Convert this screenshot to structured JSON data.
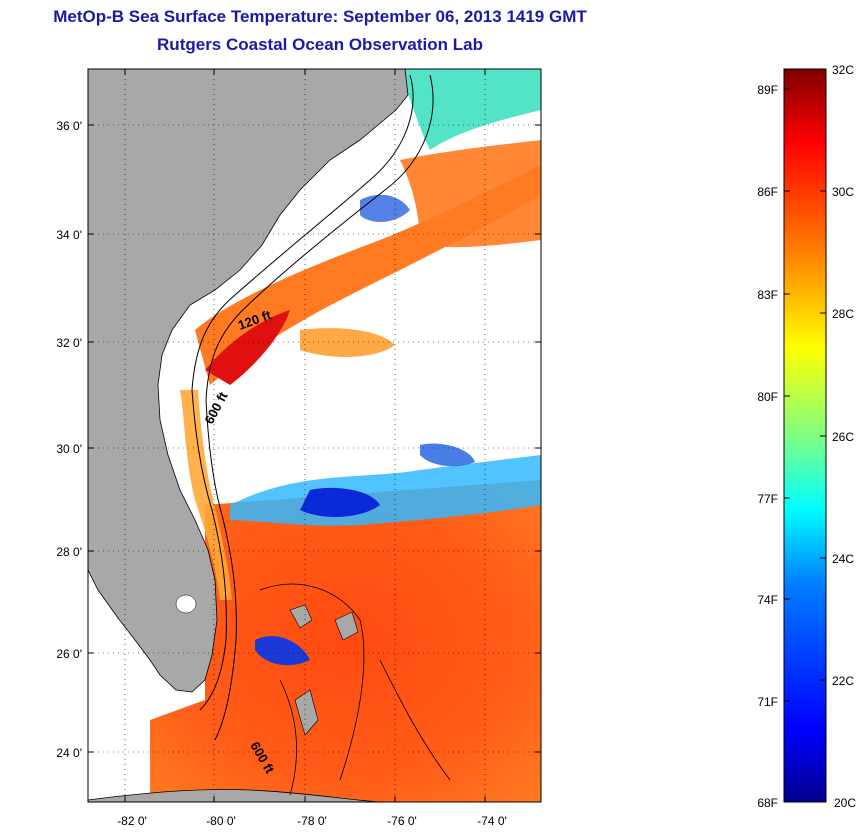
{
  "title": "MetOp-B Sea Surface Temperature:  September 06, 2013 1419 GMT",
  "subtitle": "Rutgers Coastal Ocean Observation Lab",
  "map": {
    "lat_labels": [
      "36 0'",
      "34 0'",
      "32 0'",
      "30 0'",
      "28 0'",
      "26 0'",
      "24 0'"
    ],
    "lon_labels": [
      "-82 0'",
      "-80 0'",
      "-78 0'",
      "-76 0'",
      "-74 0'"
    ],
    "contour_labels": [
      "120 ft",
      "600 ft",
      "600 ft"
    ],
    "colors": {
      "land": "#a8a8a8",
      "cloud": "#ffffff",
      "coastline": "#000000"
    }
  },
  "colorbar": {
    "fahrenheit_labels": [
      "89F",
      "86F",
      "83F",
      "80F",
      "77F",
      "74F",
      "71F",
      "68F"
    ],
    "celsius_labels": [
      "32C",
      "30C",
      "28C",
      "26C",
      "24C",
      "22C",
      "20C"
    ],
    "colors": [
      "#7f0000",
      "#ff0000",
      "#ff8000",
      "#ffff00",
      "#80ff80",
      "#00ffff",
      "#0080ff",
      "#0000ff",
      "#00008f"
    ]
  }
}
